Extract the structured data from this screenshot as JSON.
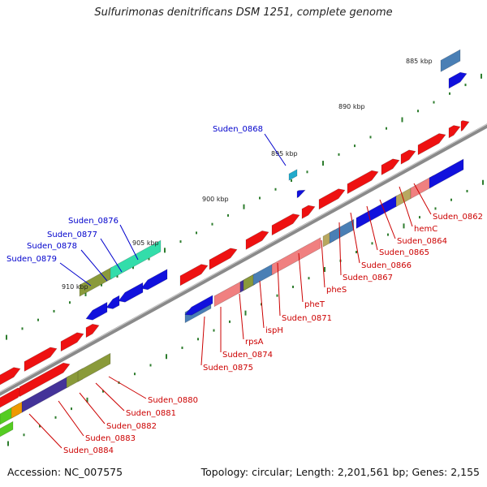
{
  "title": "Sulfurimonas denitrificans DSM 1251, complete genome",
  "footer": {
    "accession": "Accession: NC_007575",
    "summary": "Topology: circular; Length: 2,201,561 bp; Genes: 2,155"
  },
  "colors": {
    "backbone": "#8a8a8a",
    "tick": "#2e7d2e",
    "forward_cds": "#ee1111",
    "reverse_cds": "#1111dd",
    "rrna_like": "#f08080",
    "steelblue": "#4a7fb5",
    "olive": "#8a9a3a",
    "lime": "#55cc22",
    "orange": "#ee9900",
    "slateblue": "#443399",
    "cyan": "#22aacc",
    "aquamarine": "#33ddaa",
    "khaki": "#b8a860",
    "label_red": "#cc0000",
    "label_blue": "#0000cc"
  },
  "scale_labels": [
    {
      "text": "885 kbp"
    },
    {
      "text": "890 kbp"
    },
    {
      "text": "895 kbp"
    },
    {
      "text": "900 kbp"
    },
    {
      "text": "905 kbp"
    },
    {
      "text": "910 kbp"
    }
  ],
  "gene_labels_forward": [
    {
      "text": "Suden_0868"
    },
    {
      "text": "Suden_0876"
    },
    {
      "text": "Suden_0877"
    },
    {
      "text": "Suden_0878"
    },
    {
      "text": "Suden_0879"
    }
  ],
  "gene_labels_reverse": [
    {
      "text": "Suden_0862"
    },
    {
      "text": "hemC"
    },
    {
      "text": "Suden_0864"
    },
    {
      "text": "Suden_0865"
    },
    {
      "text": "Suden_0866"
    },
    {
      "text": "Suden_0867"
    },
    {
      "text": "pheS"
    },
    {
      "text": "pheT"
    },
    {
      "text": "Suden_0871"
    },
    {
      "text": "ispH"
    },
    {
      "text": "rpsA"
    },
    {
      "text": "Suden_0874"
    },
    {
      "text": "Suden_0875"
    },
    {
      "text": "Suden_0880"
    },
    {
      "text": "Suden_0881"
    },
    {
      "text": "Suden_0882"
    },
    {
      "text": "Suden_0883"
    },
    {
      "text": "Suden_0884"
    }
  ]
}
